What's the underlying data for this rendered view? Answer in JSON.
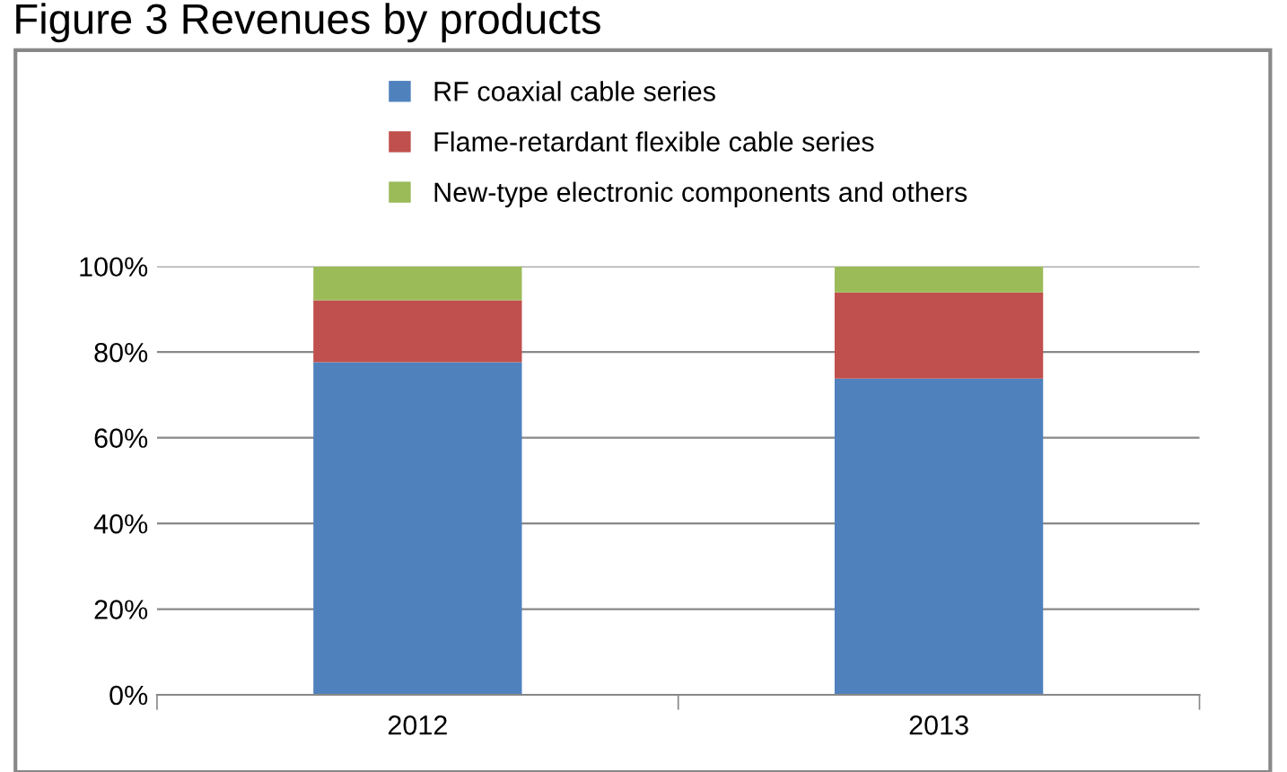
{
  "chart_data": {
    "type": "bar",
    "title": "Figure 3 Revenues by products",
    "stacked": true,
    "categories": [
      "2012",
      "2013"
    ],
    "series": [
      {
        "name": "RF coaxial cable series",
        "color": "#4f81bd",
        "values": [
          77.6,
          73.8
        ]
      },
      {
        "name": "Flame-retardant flexible cable series",
        "color": "#c0504d",
        "values": [
          14.5,
          20.1
        ]
      },
      {
        "name": "New-type electronic components and others",
        "color": "#9bbb59",
        "values": [
          7.9,
          6.1
        ]
      }
    ],
    "ylim": [
      0,
      100
    ],
    "yticks": [
      {
        "value": 0,
        "label": "0%"
      },
      {
        "value": 20,
        "label": "20%"
      },
      {
        "value": 40,
        "label": "40%"
      },
      {
        "value": 60,
        "label": "60%"
      },
      {
        "value": 80,
        "label": "80%"
      },
      {
        "value": 100,
        "label": "100%"
      }
    ],
    "grid": "y",
    "legend": "top"
  }
}
